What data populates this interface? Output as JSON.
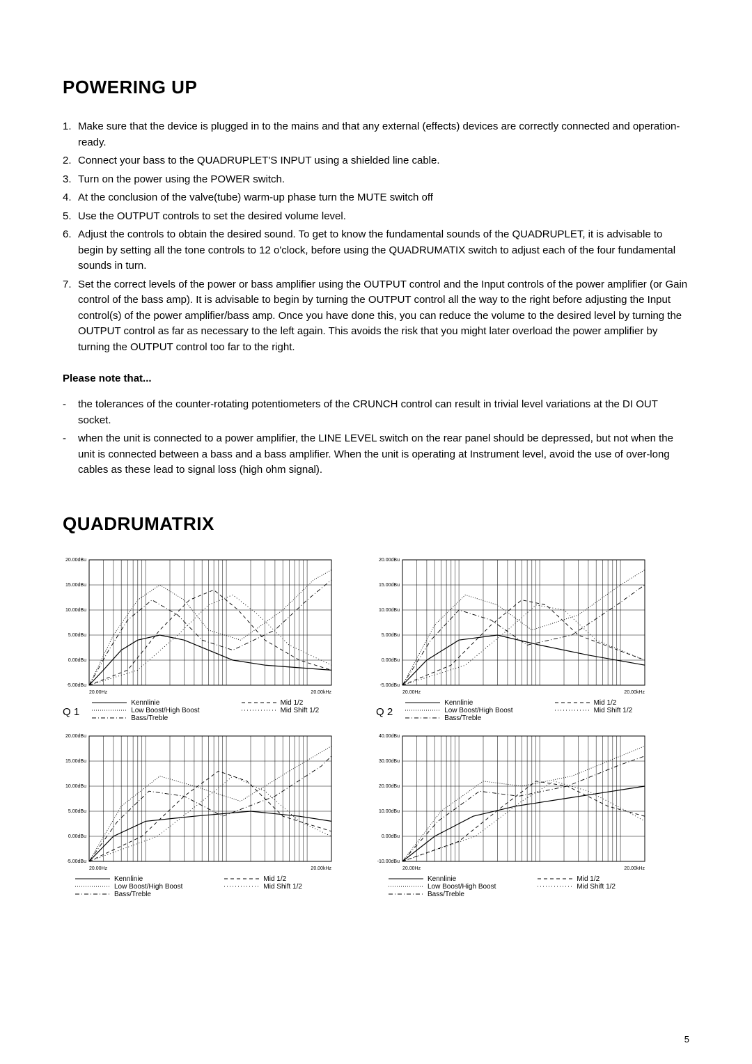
{
  "headings": {
    "powering_up": "POWERING UP",
    "quadrumatrix": "QUADRUMATRIX",
    "please_note": "Please note that..."
  },
  "ol_items": [
    "Make sure that the device is plugged in to the mains and that any external (effects) devices are correctly connected and operation-ready.",
    "Connect your bass to the QUADRUPLET'S INPUT using a shielded line cable.",
    "Turn on the power using the POWER switch.",
    "At the conclusion of the valve(tube) warm-up phase turn the MUTE switch off",
    "Use the OUTPUT controls to set the desired volume level.",
    "Adjust the controls to obtain the desired sound. To get to know the fundamental sounds of the QUADRUPLET, it is advisable to begin by setting all the tone controls to 12 o'clock, before using the QUADRUMATIX switch to adjust each of the four fundamental sounds in turn.",
    "Set the correct levels of the power or bass amplifier using the OUTPUT control and the Input controls of the power amplifier (or Gain control of the bass amp). It is advisable to begin by turning the OUTPUT control all the way to the right before adjusting the Input control(s) of the power amplifier/bass amp. Once you have done this, you can reduce the volume to the desired level by turning the OUTPUT control as far as necessary to the left again. This avoids the risk that you might later overload the power amplifier by turning the OUTPUT control too far to the right."
  ],
  "note_items": [
    "the tolerances of the counter-rotating potentiometers of the CRUNCH control can result in trivial level variations at the DI OUT socket.",
    "when the unit is connected to a power amplifier, the LINE LEVEL switch on the rear panel should be depressed, but not when the unit is connected between a bass and a bass amplifier. When the unit is operating at Instrument level, avoid the use of over-long cables as these lead to signal loss (high ohm signal)."
  ],
  "legend_labels": {
    "kennlinie": "Kennlinie",
    "low_high": "Low Boost/High Boost",
    "bass_treble": "Bass/Treble",
    "mid12": "Mid 1/2",
    "midshift12": "Mid Shift 1/2"
  },
  "charts": [
    {
      "label": "Q 1",
      "y_ticks": [
        "20.00dBu",
        "15.00dBu",
        "10.00dBu",
        "5.00dBu",
        "0.00dBu",
        "-5.00dBu"
      ],
      "y_values": [
        20,
        15,
        10,
        5,
        0,
        -5
      ],
      "x_ticks": [
        "20.00Hz",
        "20.00kHz"
      ],
      "x_range": [
        20,
        20000
      ]
    },
    {
      "label": "Q 2",
      "y_ticks": [
        "20.00dBu",
        "15.00dBu",
        "10.00dBu",
        "5.00dBu",
        "0.00dBu",
        "-5.00dBu"
      ],
      "y_values": [
        20,
        15,
        10,
        5,
        0,
        -5
      ],
      "x_ticks": [
        "20.00Hz",
        "20.00kHz"
      ],
      "x_range": [
        20,
        20000
      ]
    },
    {
      "label": "",
      "y_ticks": [
        "20.00dBu",
        "15.00dBu",
        "10.00dBu",
        "5.00dBu",
        "0.00dBu",
        "-5.00dBu"
      ],
      "y_values": [
        20,
        15,
        10,
        5,
        0,
        -5
      ],
      "x_ticks": [
        "20.00Hz",
        "20.00kHz"
      ],
      "x_range": [
        20,
        20000
      ]
    },
    {
      "label": "",
      "y_ticks": [
        "40.00dBu",
        "30.00dBu",
        "20.00dBu",
        "10.00dBu",
        "0.00dBu",
        "-10.00dBu"
      ],
      "y_values": [
        40,
        30,
        20,
        10,
        0,
        -10
      ],
      "x_ticks": [
        "20.00Hz",
        "20.00kHz"
      ],
      "x_range": [
        20,
        20000
      ]
    }
  ],
  "chart_style": {
    "grid_color": "#000000",
    "grid_stroke": 0.5,
    "font_size_axis": 7,
    "line_colors": {
      "solid": "#000000",
      "dotted_fine": "#000000",
      "dashdot": "#000000",
      "dashed": "#000000",
      "dotted": "#000000"
    },
    "dash_patterns": {
      "solid": "",
      "dotted_fine": "1 2",
      "dashdot": "6 3 1 3",
      "dashed": "5 4",
      "dotted": "1 3"
    }
  },
  "curves_q1": {
    "kennlinie": [
      [
        20,
        -5
      ],
      [
        30,
        -2
      ],
      [
        50,
        2
      ],
      [
        80,
        4
      ],
      [
        150,
        5
      ],
      [
        300,
        4
      ],
      [
        600,
        2
      ],
      [
        1200,
        0
      ],
      [
        3000,
        -1
      ],
      [
        20000,
        -2
      ]
    ],
    "low_high": [
      [
        20,
        -5
      ],
      [
        40,
        5
      ],
      [
        80,
        12
      ],
      [
        150,
        15
      ],
      [
        300,
        12
      ],
      [
        600,
        6
      ],
      [
        1500,
        4
      ],
      [
        5000,
        10
      ],
      [
        12000,
        16
      ],
      [
        20000,
        18
      ]
    ],
    "bass_treble": [
      [
        20,
        -5
      ],
      [
        35,
        2
      ],
      [
        60,
        8
      ],
      [
        120,
        12
      ],
      [
        250,
        9
      ],
      [
        500,
        4
      ],
      [
        1200,
        2
      ],
      [
        4000,
        6
      ],
      [
        10000,
        12
      ],
      [
        20000,
        16
      ]
    ],
    "mid12": [
      [
        20,
        -5
      ],
      [
        60,
        -2
      ],
      [
        150,
        6
      ],
      [
        350,
        12
      ],
      [
        700,
        14
      ],
      [
        1400,
        10
      ],
      [
        3000,
        4
      ],
      [
        8000,
        0
      ],
      [
        20000,
        -2
      ]
    ],
    "midshift": [
      [
        20,
        -5
      ],
      [
        80,
        -2
      ],
      [
        250,
        5
      ],
      [
        600,
        11
      ],
      [
        1200,
        13
      ],
      [
        2500,
        9
      ],
      [
        6000,
        3
      ],
      [
        20000,
        -1
      ]
    ]
  },
  "curves_q2": {
    "kennlinie": [
      [
        20,
        -5
      ],
      [
        40,
        0
      ],
      [
        100,
        4
      ],
      [
        300,
        5
      ],
      [
        1000,
        3
      ],
      [
        4000,
        1
      ],
      [
        20000,
        -1
      ]
    ],
    "low_high": [
      [
        20,
        -5
      ],
      [
        50,
        7
      ],
      [
        120,
        13
      ],
      [
        300,
        11
      ],
      [
        800,
        6
      ],
      [
        3000,
        9
      ],
      [
        10000,
        15
      ],
      [
        20000,
        18
      ]
    ],
    "bass_treble": [
      [
        20,
        -5
      ],
      [
        45,
        4
      ],
      [
        100,
        10
      ],
      [
        250,
        8
      ],
      [
        700,
        3
      ],
      [
        2500,
        5
      ],
      [
        9000,
        11
      ],
      [
        20000,
        15
      ]
    ],
    "mid12": [
      [
        20,
        -5
      ],
      [
        80,
        -1
      ],
      [
        250,
        7
      ],
      [
        600,
        12
      ],
      [
        1200,
        11
      ],
      [
        3000,
        5
      ],
      [
        20000,
        0
      ]
    ],
    "midshift": [
      [
        20,
        -5
      ],
      [
        120,
        -1
      ],
      [
        400,
        6
      ],
      [
        900,
        11
      ],
      [
        2000,
        10
      ],
      [
        5000,
        4
      ],
      [
        20000,
        0
      ]
    ]
  },
  "curves_q3": {
    "kennlinie": [
      [
        20,
        -5
      ],
      [
        40,
        0
      ],
      [
        100,
        3
      ],
      [
        400,
        4
      ],
      [
        2000,
        5
      ],
      [
        8000,
        4
      ],
      [
        20000,
        3
      ]
    ],
    "low_high": [
      [
        20,
        -5
      ],
      [
        50,
        6
      ],
      [
        150,
        12
      ],
      [
        400,
        10
      ],
      [
        1500,
        7
      ],
      [
        6000,
        13
      ],
      [
        20000,
        18
      ]
    ],
    "bass_treble": [
      [
        20,
        -5
      ],
      [
        45,
        3
      ],
      [
        110,
        9
      ],
      [
        300,
        8
      ],
      [
        900,
        4
      ],
      [
        4000,
        8
      ],
      [
        15000,
        14
      ],
      [
        20000,
        16
      ]
    ],
    "mid12": [
      [
        20,
        -5
      ],
      [
        90,
        0
      ],
      [
        300,
        8
      ],
      [
        800,
        13
      ],
      [
        1800,
        11
      ],
      [
        5000,
        4
      ],
      [
        20000,
        1
      ]
    ],
    "midshift": [
      [
        20,
        -5
      ],
      [
        140,
        0
      ],
      [
        500,
        7
      ],
      [
        1200,
        12
      ],
      [
        3000,
        9
      ],
      [
        8000,
        3
      ],
      [
        20000,
        0
      ]
    ]
  },
  "curves_q4": {
    "kennlinie": [
      [
        20,
        -10
      ],
      [
        50,
        0
      ],
      [
        150,
        8
      ],
      [
        500,
        12
      ],
      [
        2000,
        15
      ],
      [
        8000,
        18
      ],
      [
        20000,
        20
      ]
    ],
    "low_high": [
      [
        20,
        -10
      ],
      [
        60,
        10
      ],
      [
        200,
        22
      ],
      [
        600,
        20
      ],
      [
        2500,
        24
      ],
      [
        10000,
        32
      ],
      [
        20000,
        36
      ]
    ],
    "bass_treble": [
      [
        20,
        -10
      ],
      [
        55,
        6
      ],
      [
        180,
        18
      ],
      [
        550,
        16
      ],
      [
        2200,
        20
      ],
      [
        9000,
        28
      ],
      [
        20000,
        32
      ]
    ],
    "mid12": [
      [
        20,
        -10
      ],
      [
        100,
        -2
      ],
      [
        350,
        12
      ],
      [
        900,
        22
      ],
      [
        2200,
        20
      ],
      [
        7000,
        12
      ],
      [
        20000,
        8
      ]
    ],
    "midshift": [
      [
        20,
        -10
      ],
      [
        160,
        0
      ],
      [
        600,
        14
      ],
      [
        1500,
        22
      ],
      [
        4000,
        18
      ],
      [
        12000,
        10
      ],
      [
        20000,
        6
      ]
    ]
  },
  "page_number": "5"
}
